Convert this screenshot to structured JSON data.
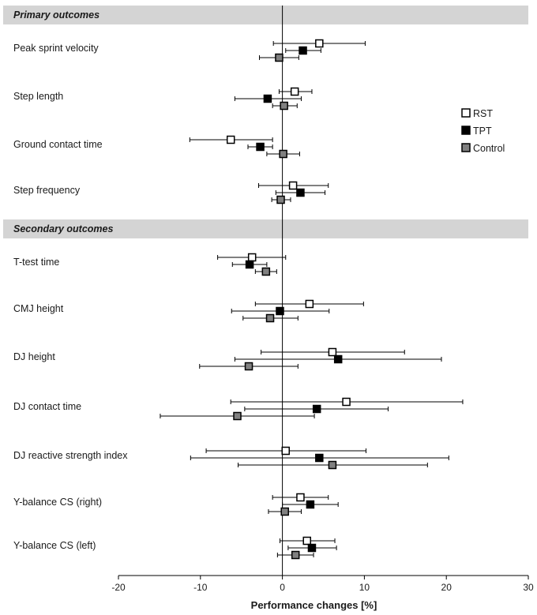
{
  "chart_data": {
    "type": "forest",
    "xlabel": "Performance changes [%]",
    "xlim": [
      -20,
      30
    ],
    "xticks": [
      -20,
      -10,
      0,
      10,
      20,
      30
    ],
    "legend_position": "right",
    "series": [
      {
        "name": "RST",
        "color": "#ffffff"
      },
      {
        "name": "TPT",
        "color": "#000000"
      },
      {
        "name": "Control",
        "color": "#808080"
      }
    ],
    "sections": [
      {
        "title": "Primary outcomes",
        "outcomes": [
          {
            "label": "Peak sprint velocity",
            "points": [
              {
                "series": "RST",
                "mean": 4.5,
                "lo": -1.1,
                "hi": 10.1
              },
              {
                "series": "TPT",
                "mean": 2.5,
                "lo": 0.4,
                "hi": 4.7
              },
              {
                "series": "Control",
                "mean": -0.4,
                "lo": -2.8,
                "hi": 2.0
              }
            ]
          },
          {
            "label": "Step length",
            "points": [
              {
                "series": "RST",
                "mean": 1.5,
                "lo": -0.4,
                "hi": 3.6
              },
              {
                "series": "TPT",
                "mean": -1.8,
                "lo": -5.8,
                "hi": 2.3
              },
              {
                "series": "Control",
                "mean": 0.2,
                "lo": -1.2,
                "hi": 1.8
              }
            ]
          },
          {
            "label": "Ground contact time",
            "points": [
              {
                "series": "RST",
                "mean": -6.3,
                "lo": -11.3,
                "hi": -1.2
              },
              {
                "series": "TPT",
                "mean": -2.7,
                "lo": -4.2,
                "hi": -1.2
              },
              {
                "series": "Control",
                "mean": 0.1,
                "lo": -1.9,
                "hi": 2.1
              }
            ]
          },
          {
            "label": "Step frequency",
            "points": [
              {
                "series": "RST",
                "mean": 1.3,
                "lo": -2.9,
                "hi": 5.6
              },
              {
                "series": "TPT",
                "mean": 2.2,
                "lo": -0.8,
                "hi": 5.2
              },
              {
                "series": "Control",
                "mean": -0.2,
                "lo": -1.3,
                "hi": 1.0
              }
            ]
          }
        ]
      },
      {
        "title": "Secondary outcomes",
        "outcomes": [
          {
            "label": "T-test time",
            "points": [
              {
                "series": "RST",
                "mean": -3.7,
                "lo": -7.9,
                "hi": 0.4
              },
              {
                "series": "TPT",
                "mean": -4.0,
                "lo": -6.1,
                "hi": -1.9
              },
              {
                "series": "Control",
                "mean": -2.0,
                "lo": -3.3,
                "hi": -0.7
              }
            ]
          },
          {
            "label": "CMJ height",
            "points": [
              {
                "series": "RST",
                "mean": 3.3,
                "lo": -3.3,
                "hi": 9.9
              },
              {
                "series": "TPT",
                "mean": -0.3,
                "lo": -6.2,
                "hi": 5.7
              },
              {
                "series": "Control",
                "mean": -1.5,
                "lo": -4.8,
                "hi": 1.9
              }
            ]
          },
          {
            "label": "DJ height",
            "points": [
              {
                "series": "RST",
                "mean": 6.1,
                "lo": -2.6,
                "hi": 14.9
              },
              {
                "series": "TPT",
                "mean": 6.8,
                "lo": -5.8,
                "hi": 19.4
              },
              {
                "series": "Control",
                "mean": -4.1,
                "lo": -10.1,
                "hi": 1.9
              }
            ]
          },
          {
            "label": "DJ contact time",
            "points": [
              {
                "series": "RST",
                "mean": 7.8,
                "lo": -6.3,
                "hi": 22.0
              },
              {
                "series": "TPT",
                "mean": 4.2,
                "lo": -4.6,
                "hi": 12.9
              },
              {
                "series": "Control",
                "mean": -5.5,
                "lo": -14.9,
                "hi": 3.9
              }
            ]
          },
          {
            "label": "DJ reactive strength index",
            "points": [
              {
                "series": "RST",
                "mean": 0.4,
                "lo": -9.3,
                "hi": 10.2
              },
              {
                "series": "TPT",
                "mean": 4.5,
                "lo": -11.2,
                "hi": 20.3
              },
              {
                "series": "Control",
                "mean": 6.1,
                "lo": -5.4,
                "hi": 17.7
              }
            ]
          },
          {
            "label": "Y-balance CS (right)",
            "points": [
              {
                "series": "RST",
                "mean": 2.2,
                "lo": -1.2,
                "hi": 5.6
              },
              {
                "series": "TPT",
                "mean": 3.4,
                "lo": 0.0,
                "hi": 6.8
              },
              {
                "series": "Control",
                "mean": 0.3,
                "lo": -1.7,
                "hi": 2.3
              }
            ]
          },
          {
            "label": "Y-balance CS (left)",
            "points": [
              {
                "series": "RST",
                "mean": 3.0,
                "lo": -0.3,
                "hi": 6.4
              },
              {
                "series": "TPT",
                "mean": 3.6,
                "lo": 0.7,
                "hi": 6.6
              },
              {
                "series": "Control",
                "mean": 1.6,
                "lo": -0.6,
                "hi": 3.8
              }
            ]
          }
        ]
      }
    ]
  }
}
